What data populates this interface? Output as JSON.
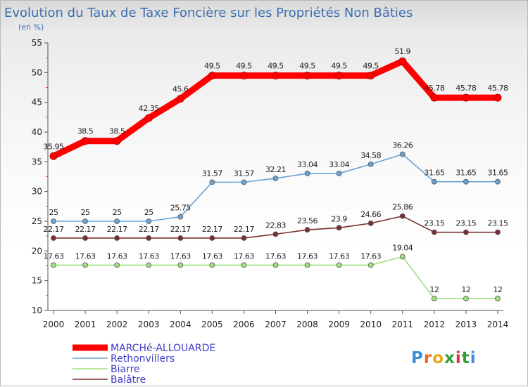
{
  "chart_data": {
    "type": "line",
    "title": "Evolution du Taux de Taxe Foncière sur les Propriétés Non Bâties",
    "subtitle": "(en %)",
    "x": [
      "2000",
      "2001",
      "2002",
      "2003",
      "2004",
      "2005",
      "2006",
      "2007",
      "2008",
      "2009",
      "2010",
      "2011",
      "2012",
      "2013",
      "2014"
    ],
    "yticks": [
      10,
      15,
      20,
      25,
      30,
      35,
      40,
      45,
      50,
      55
    ],
    "ylim": [
      10,
      55
    ],
    "grid": false,
    "legend_position": "bottom-left",
    "series": [
      {
        "name": "MARCHé-ALLOUARDE",
        "color": "#ff0000",
        "values": [
          35.95,
          38.5,
          38.5,
          42.35,
          45.6,
          49.5,
          49.5,
          49.5,
          49.5,
          49.5,
          49.5,
          51.9,
          45.78,
          45.78,
          45.78
        ],
        "labels": [
          "35.95",
          "38.5",
          "38.5",
          "42.35",
          "45.6",
          "49.5",
          "49.5",
          "49.5",
          "49.5",
          "49.5",
          "49.5",
          "51.9",
          "45.78",
          "45.78",
          "45.78"
        ]
      },
      {
        "name": "Rethonvillers",
        "color": "#6aa2d2",
        "values": [
          25,
          25,
          25,
          25,
          25.75,
          31.57,
          31.57,
          32.21,
          33.04,
          33.04,
          34.58,
          36.26,
          31.65,
          31.65,
          31.65
        ],
        "labels": [
          "25",
          "25",
          "25",
          "25",
          "25.75",
          "31.57",
          "31.57",
          "32.21",
          "33.04",
          "33.04",
          "34.58",
          "36.26",
          "31.65",
          "31.65",
          "31.65"
        ]
      },
      {
        "name": "Biarre",
        "color": "#9ee07a",
        "values": [
          17.63,
          17.63,
          17.63,
          17.63,
          17.63,
          17.63,
          17.63,
          17.63,
          17.63,
          17.63,
          17.63,
          19.04,
          12,
          12,
          12
        ],
        "labels": [
          "17.63",
          "17.63",
          "17.63",
          "17.63",
          "17.63",
          "17.63",
          "17.63",
          "17.63",
          "17.63",
          "17.63",
          "17.63",
          "19.04",
          "12",
          "12",
          "12"
        ]
      },
      {
        "name": "Balâtre",
        "color": "#7a2e2e",
        "values": [
          22.17,
          22.17,
          22.17,
          22.17,
          22.17,
          22.17,
          22.17,
          22.83,
          23.56,
          23.9,
          24.66,
          25.86,
          23.15,
          23.15,
          23.15
        ],
        "labels": [
          "22.17",
          "22.17",
          "22.17",
          "22.17",
          "22.17",
          "22.17",
          "22.17",
          "22.83",
          "23.56",
          "23.9",
          "24.66",
          "25.86",
          "23.15",
          "23.15",
          "23.15"
        ]
      }
    ]
  },
  "logo": {
    "letters": [
      "P",
      "r",
      "o",
      "x",
      "i",
      "t",
      "i"
    ],
    "colors": [
      "#3a8fd8",
      "#e86c1a",
      "#e8a81a",
      "#2e9e3c",
      "#d23a3a",
      "#2e9e3c",
      "#3a8fd8"
    ]
  }
}
